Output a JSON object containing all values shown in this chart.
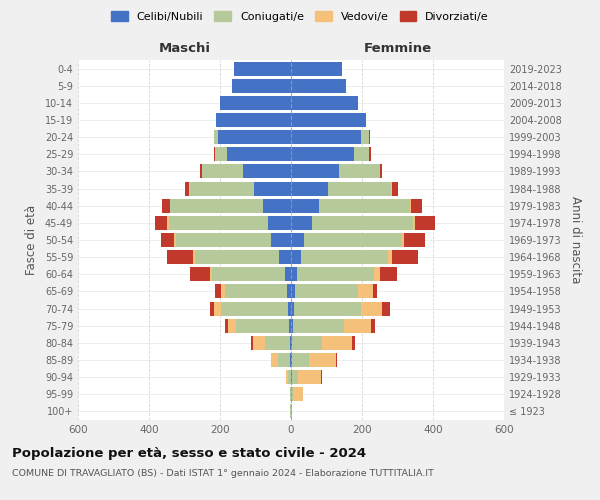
{
  "age_groups": [
    "100+",
    "95-99",
    "90-94",
    "85-89",
    "80-84",
    "75-79",
    "70-74",
    "65-69",
    "60-64",
    "55-59",
    "50-54",
    "45-49",
    "40-44",
    "35-39",
    "30-34",
    "25-29",
    "20-24",
    "15-19",
    "10-14",
    "5-9",
    "0-4"
  ],
  "birth_years": [
    "≤ 1923",
    "1924-1928",
    "1929-1933",
    "1934-1938",
    "1939-1943",
    "1944-1948",
    "1949-1953",
    "1954-1958",
    "1959-1963",
    "1964-1968",
    "1969-1973",
    "1974-1978",
    "1979-1983",
    "1984-1988",
    "1989-1993",
    "1994-1998",
    "1999-2003",
    "2004-2008",
    "2009-2013",
    "2014-2018",
    "2019-2023"
  ],
  "male_celibi": [
    1,
    0,
    1,
    2,
    3,
    5,
    8,
    10,
    18,
    35,
    55,
    65,
    80,
    105,
    135,
    180,
    205,
    210,
    200,
    165,
    160
  ],
  "male_coniugati": [
    1,
    2,
    8,
    35,
    70,
    150,
    190,
    175,
    205,
    235,
    270,
    280,
    260,
    180,
    115,
    35,
    12,
    2,
    0,
    0,
    0
  ],
  "male_vedovi": [
    0,
    1,
    5,
    18,
    35,
    22,
    18,
    12,
    6,
    5,
    5,
    4,
    2,
    1,
    0,
    0,
    0,
    0,
    0,
    0,
    0
  ],
  "male_divorziati": [
    0,
    0,
    0,
    2,
    5,
    8,
    12,
    18,
    55,
    75,
    35,
    35,
    22,
    12,
    5,
    2,
    0,
    0,
    0,
    0,
    0
  ],
  "female_nubili": [
    0,
    0,
    2,
    2,
    3,
    5,
    8,
    10,
    18,
    28,
    38,
    58,
    78,
    105,
    135,
    178,
    198,
    210,
    188,
    155,
    145
  ],
  "female_coniugate": [
    1,
    5,
    18,
    50,
    85,
    145,
    190,
    178,
    215,
    245,
    275,
    285,
    258,
    178,
    115,
    42,
    22,
    2,
    0,
    0,
    0
  ],
  "female_vedove": [
    1,
    28,
    65,
    75,
    85,
    75,
    58,
    42,
    18,
    12,
    6,
    5,
    2,
    1,
    0,
    0,
    0,
    0,
    0,
    0,
    0
  ],
  "female_divorziate": [
    0,
    0,
    2,
    2,
    8,
    12,
    22,
    12,
    48,
    72,
    58,
    58,
    32,
    18,
    6,
    5,
    2,
    0,
    0,
    0,
    0
  ],
  "color_celibi": "#4472c4",
  "color_coniugati": "#b5c99a",
  "color_vedovi": "#f5c07a",
  "color_divorziati": "#c0392b",
  "title": "Popolazione per età, sesso e stato civile - 2024",
  "subtitle": "COMUNE DI TRAVAGLIATO (BS) - Dati ISTAT 1° gennaio 2024 - Elaborazione TUTTITALIA.IT",
  "legend_labels": [
    "Celibi/Nubili",
    "Coniugati/e",
    "Vedovi/e",
    "Divorziati/e"
  ],
  "ylabel_left": "Fasce di età",
  "ylabel_right": "Anni di nascita",
  "xlabel_left": "Maschi",
  "xlabel_right": "Femmine",
  "xlim": 600,
  "bg_color": "#f0f0f0",
  "plot_bg": "#ffffff"
}
